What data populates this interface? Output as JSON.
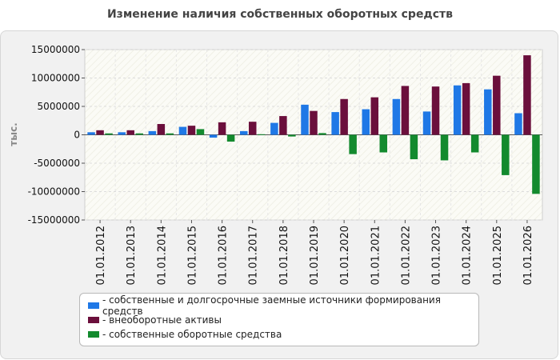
{
  "chart_data": {
    "type": "bar",
    "title": "Изменение наличия собственных оборотных средств",
    "ylabel": "тыс.",
    "xlabel": "",
    "ylim": [
      -15000000,
      15000000
    ],
    "yticks": [
      15000000,
      10000000,
      5000000,
      0,
      -5000000,
      -10000000,
      -15000000
    ],
    "ytick_labels": [
      "15000000",
      "10000000",
      "5000000",
      "0",
      "-5000000",
      "-10000000",
      "-15000000"
    ],
    "categories": [
      "01.01.2012",
      "01.01.2013",
      "01.01.2014",
      "01.01.2015",
      "01.01.2016",
      "01.01.2017",
      "01.01.2018",
      "01.01.2019",
      "01.01.2020",
      "01.01.2021",
      "01.01.2022",
      "01.01.2023",
      "01.01.2024",
      "01.01.2025",
      "01.01.2026"
    ],
    "series": [
      {
        "name": "собственные и долгосрочные заемные источники формирования средств",
        "color": "#1f78e6",
        "values": [
          450000,
          450000,
          650000,
          1400000,
          -500000,
          650000,
          2100000,
          5300000,
          4000000,
          4500000,
          6300000,
          4100000,
          8700000,
          8000000,
          3800000
        ]
      },
      {
        "name": "внеоборотные активы",
        "color": "#6b0f3c",
        "values": [
          800000,
          800000,
          1900000,
          1600000,
          2200000,
          2300000,
          3300000,
          4200000,
          6300000,
          6600000,
          8600000,
          8500000,
          9100000,
          10400000,
          14000000
        ]
      },
      {
        "name": "собственные оборотные средства",
        "color": "#138a2e",
        "values": [
          250000,
          250000,
          250000,
          1000000,
          -1200000,
          100000,
          -300000,
          300000,
          -3400000,
          -3100000,
          -4300000,
          -4500000,
          -3100000,
          -7100000,
          -10400000
        ]
      }
    ],
    "grid": true,
    "legend_position": "bottom"
  }
}
